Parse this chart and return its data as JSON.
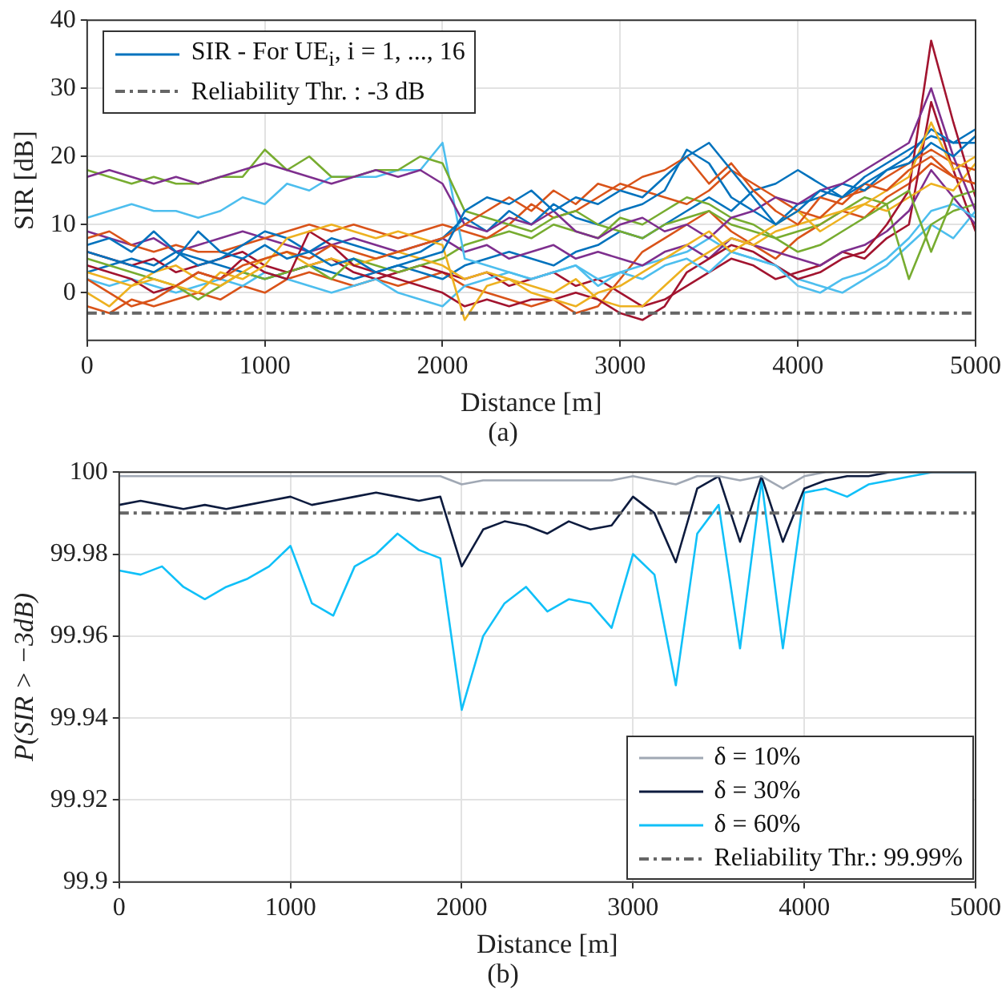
{
  "chart_data": [
    {
      "type": "line",
      "xlabel": "Distance [m]",
      "ylabel": "SIR [dB]",
      "annotations": [
        "(a)"
      ],
      "x": [
        0,
        125,
        250,
        375,
        500,
        625,
        750,
        875,
        1000,
        1125,
        1250,
        1375,
        1500,
        1625,
        1750,
        1875,
        2000,
        2125,
        2250,
        2375,
        2500,
        2625,
        2750,
        2875,
        3000,
        3125,
        3250,
        3375,
        3500,
        3625,
        3750,
        3875,
        4000,
        4125,
        4250,
        4375,
        4500,
        4625,
        4750,
        4875,
        5000
      ],
      "xlim": [
        0,
        5000
      ],
      "xticks": [
        0,
        1000,
        2000,
        3000,
        4000,
        5000
      ],
      "ylim": [
        -7,
        40
      ],
      "yticks": [
        0,
        10,
        20,
        30,
        40
      ],
      "grid": true,
      "legend": "top left",
      "ref_lines": [
        {
          "axis": "y",
          "value": -3,
          "label": "Reliability Thr. : -3 dB",
          "color": "#666666",
          "line_style": "dashed"
        }
      ],
      "series": [
        {
          "name": "SIR - For UE$_{i}$, i = 1, ..., 16",
          "color": "#0072bd",
          "values": [
            6,
            5,
            4,
            3,
            5,
            9,
            6,
            5,
            7,
            5,
            6,
            4,
            5,
            3,
            4,
            5,
            6,
            12,
            14,
            13,
            15,
            12,
            14,
            13,
            15,
            14,
            17,
            20,
            22,
            18,
            14,
            10,
            12,
            15,
            14,
            16,
            18,
            19,
            22,
            20,
            23
          ]
        },
        {
          "color": "#d95319",
          "values": [
            2,
            0,
            -2,
            -1,
            1,
            3,
            2,
            4,
            5,
            6,
            5,
            7,
            6,
            5,
            6,
            7,
            8,
            10,
            12,
            14,
            12,
            15,
            13,
            16,
            15,
            17,
            18,
            20,
            16,
            19,
            15,
            12,
            10,
            14,
            13,
            16,
            15,
            18,
            20,
            17,
            16
          ]
        },
        {
          "color": "#edb120",
          "values": [
            0,
            -2,
            1,
            2,
            1,
            0,
            3,
            2,
            4,
            8,
            9,
            10,
            9,
            8,
            9,
            8,
            7,
            -4,
            1,
            2,
            0,
            -1,
            -2,
            0,
            1,
            3,
            5,
            7,
            9,
            6,
            8,
            10,
            12,
            9,
            11,
            13,
            15,
            17,
            25,
            18,
            20
          ]
        },
        {
          "color": "#7e2f8e",
          "values": [
            17,
            18,
            17,
            16,
            17,
            16,
            17,
            18,
            19,
            18,
            17,
            16,
            17,
            18,
            17,
            18,
            16,
            10,
            9,
            11,
            10,
            12,
            9,
            8,
            10,
            11,
            9,
            10,
            8,
            11,
            12,
            14,
            13,
            15,
            16,
            18,
            20,
            22,
            30,
            20,
            12
          ]
        },
        {
          "color": "#77ac30",
          "values": [
            18,
            17,
            16,
            17,
            16,
            16,
            17,
            17,
            21,
            18,
            20,
            17,
            17,
            18,
            18,
            20,
            19,
            12,
            11,
            10,
            9,
            11,
            12,
            10,
            9,
            8,
            10,
            11,
            12,
            10,
            9,
            8,
            6,
            7,
            9,
            11,
            13,
            15,
            6,
            14,
            15
          ]
        },
        {
          "color": "#4dbeee",
          "values": [
            11,
            12,
            13,
            12,
            12,
            11,
            12,
            14,
            13,
            16,
            15,
            17,
            17,
            17,
            18,
            18,
            22,
            5,
            4,
            3,
            2,
            3,
            4,
            1,
            3,
            2,
            4,
            5,
            3,
            6,
            5,
            4,
            1,
            0,
            2,
            3,
            5,
            8,
            12,
            13,
            11
          ]
        },
        {
          "color": "#a2142f",
          "values": [
            4,
            3,
            2,
            0,
            1,
            3,
            2,
            5,
            3,
            2,
            9,
            7,
            4,
            3,
            2,
            1,
            0,
            -2,
            -1,
            -2,
            -1,
            -1,
            0,
            -1,
            -3,
            -4,
            -2,
            3,
            5,
            7,
            6,
            4,
            2,
            3,
            5,
            6,
            10,
            15,
            37,
            25,
            14
          ]
        },
        {
          "color": "#0072bd",
          "values": [
            7,
            8,
            6,
            9,
            6,
            4,
            5,
            7,
            9,
            8,
            6,
            8,
            7,
            6,
            5,
            6,
            8,
            11,
            9,
            12,
            10,
            13,
            11,
            10,
            12,
            13,
            15,
            21,
            19,
            14,
            12,
            10,
            13,
            14,
            16,
            15,
            18,
            20,
            24,
            22,
            22
          ]
        },
        {
          "color": "#d95319",
          "values": [
            8,
            9,
            7,
            6,
            7,
            6,
            6,
            7,
            8,
            9,
            10,
            9,
            10,
            9,
            8,
            9,
            10,
            9,
            8,
            10,
            13,
            11,
            12,
            14,
            16,
            15,
            14,
            13,
            15,
            18,
            16,
            14,
            12,
            11,
            14,
            15,
            17,
            19,
            21,
            19,
            18
          ]
        },
        {
          "color": "#edb120",
          "values": [
            3,
            2,
            1,
            3,
            4,
            2,
            1,
            3,
            5,
            6,
            4,
            5,
            4,
            5,
            6,
            5,
            4,
            2,
            3,
            2,
            1,
            0,
            2,
            -1,
            -2,
            -2,
            1,
            4,
            6,
            8,
            7,
            9,
            10,
            11,
            12,
            13,
            12,
            14,
            16,
            15,
            19
          ]
        },
        {
          "color": "#7e2f8e",
          "values": [
            9,
            8,
            7,
            8,
            6,
            7,
            8,
            9,
            8,
            7,
            6,
            7,
            8,
            7,
            6,
            7,
            8,
            6,
            7,
            5,
            6,
            7,
            5,
            6,
            5,
            4,
            6,
            7,
            5,
            8,
            7,
            6,
            5,
            4,
            6,
            7,
            9,
            12,
            18,
            14,
            10
          ]
        },
        {
          "color": "#77ac30",
          "values": [
            5,
            4,
            3,
            2,
            1,
            -1,
            1,
            3,
            2,
            3,
            4,
            2,
            5,
            4,
            3,
            4,
            5,
            7,
            8,
            9,
            8,
            10,
            9,
            8,
            11,
            10,
            12,
            14,
            13,
            11,
            10,
            8,
            9,
            10,
            12,
            14,
            13,
            2,
            10,
            12,
            13
          ]
        },
        {
          "color": "#4dbeee",
          "values": [
            2,
            1,
            2,
            1,
            0,
            1,
            2,
            1,
            3,
            2,
            1,
            0,
            1,
            2,
            0,
            -1,
            -2,
            1,
            2,
            3,
            2,
            3,
            4,
            2,
            3,
            4,
            5,
            6,
            8,
            6,
            5,
            4,
            2,
            1,
            0,
            2,
            4,
            7,
            10,
            8,
            12
          ]
        },
        {
          "color": "#a2142f",
          "values": [
            6,
            5,
            4,
            5,
            3,
            4,
            5,
            6,
            4,
            3,
            4,
            5,
            3,
            2,
            3,
            4,
            3,
            2,
            3,
            1,
            2,
            3,
            1,
            2,
            0,
            -2,
            -1,
            1,
            3,
            5,
            4,
            2,
            3,
            4,
            6,
            5,
            8,
            10,
            28,
            18,
            9
          ]
        },
        {
          "color": "#0072bd",
          "values": [
            3,
            4,
            5,
            4,
            6,
            5,
            4,
            3,
            2,
            3,
            4,
            3,
            2,
            3,
            4,
            3,
            2,
            4,
            5,
            6,
            5,
            4,
            6,
            7,
            9,
            8,
            10,
            12,
            14,
            12,
            15,
            16,
            18,
            16,
            14,
            17,
            19,
            21,
            23,
            22,
            24
          ]
        },
        {
          "color": "#d95319",
          "values": [
            -2,
            -3,
            -1,
            -2,
            -1,
            0,
            -1,
            1,
            0,
            2,
            3,
            2,
            1,
            2,
            1,
            2,
            3,
            1,
            0,
            -1,
            -2,
            -1,
            -3,
            -2,
            2,
            6,
            8,
            10,
            12,
            9,
            7,
            5,
            8,
            10,
            12,
            11,
            14,
            16,
            19,
            17,
            16
          ]
        }
      ]
    },
    {
      "type": "line",
      "xlabel": "Distance [m]",
      "ylabel": "P(SIR > −3dB)",
      "annotations": [
        "(b)"
      ],
      "x": [
        0,
        125,
        250,
        375,
        500,
        625,
        750,
        875,
        1000,
        1125,
        1250,
        1375,
        1500,
        1625,
        1750,
        1875,
        2000,
        2125,
        2250,
        2375,
        2500,
        2625,
        2750,
        2875,
        3000,
        3125,
        3250,
        3375,
        3500,
        3625,
        3750,
        3875,
        4000,
        4125,
        4250,
        4375,
        4500,
        4625,
        4750,
        4875,
        5000
      ],
      "xlim": [
        0,
        5000
      ],
      "xticks": [
        0,
        1000,
        2000,
        3000,
        4000,
        5000
      ],
      "ylim": [
        99.9,
        100
      ],
      "yticks": [
        99.9,
        99.92,
        99.94,
        99.96,
        99.98,
        100
      ],
      "grid": true,
      "legend": "bottom right",
      "ref_lines": [
        {
          "axis": "y",
          "value": 99.99,
          "label": "Reliability Thr.: 99.99%",
          "color": "#666666",
          "line_style": "dashed"
        }
      ],
      "series": [
        {
          "name": "δ = 10%",
          "color": "#a0a8b4",
          "values": [
            99.999,
            99.999,
            99.999,
            99.999,
            99.999,
            99.999,
            99.999,
            99.999,
            99.999,
            99.999,
            99.999,
            99.999,
            99.999,
            99.999,
            99.999,
            99.999,
            99.997,
            99.998,
            99.998,
            99.998,
            99.998,
            99.998,
            99.998,
            99.998,
            99.999,
            99.998,
            99.997,
            99.999,
            99.999,
            99.998,
            99.999,
            99.996,
            99.999,
            100,
            100,
            100,
            100,
            100,
            100,
            100,
            100
          ]
        },
        {
          "name": "δ = 30%",
          "color": "#0d1b3e",
          "values": [
            99.992,
            99.993,
            99.992,
            99.991,
            99.992,
            99.991,
            99.992,
            99.993,
            99.994,
            99.992,
            99.993,
            99.994,
            99.995,
            99.994,
            99.993,
            99.994,
            99.977,
            99.986,
            99.988,
            99.987,
            99.985,
            99.988,
            99.986,
            99.987,
            99.994,
            99.99,
            99.978,
            99.996,
            99.999,
            99.983,
            99.999,
            99.983,
            99.996,
            99.998,
            99.999,
            99.999,
            100,
            100,
            100,
            100,
            100
          ]
        },
        {
          "name": "δ = 60%",
          "color": "#10c0f8",
          "values": [
            99.976,
            99.975,
            99.977,
            99.972,
            99.969,
            99.972,
            99.974,
            99.977,
            99.982,
            99.968,
            99.965,
            99.977,
            99.98,
            99.985,
            99.981,
            99.979,
            99.942,
            99.96,
            99.968,
            99.972,
            99.966,
            99.969,
            99.968,
            99.962,
            99.98,
            99.975,
            99.948,
            99.985,
            99.992,
            99.957,
            99.998,
            99.957,
            99.995,
            99.996,
            99.994,
            99.997,
            99.998,
            99.999,
            100,
            100,
            100
          ]
        }
      ]
    }
  ]
}
